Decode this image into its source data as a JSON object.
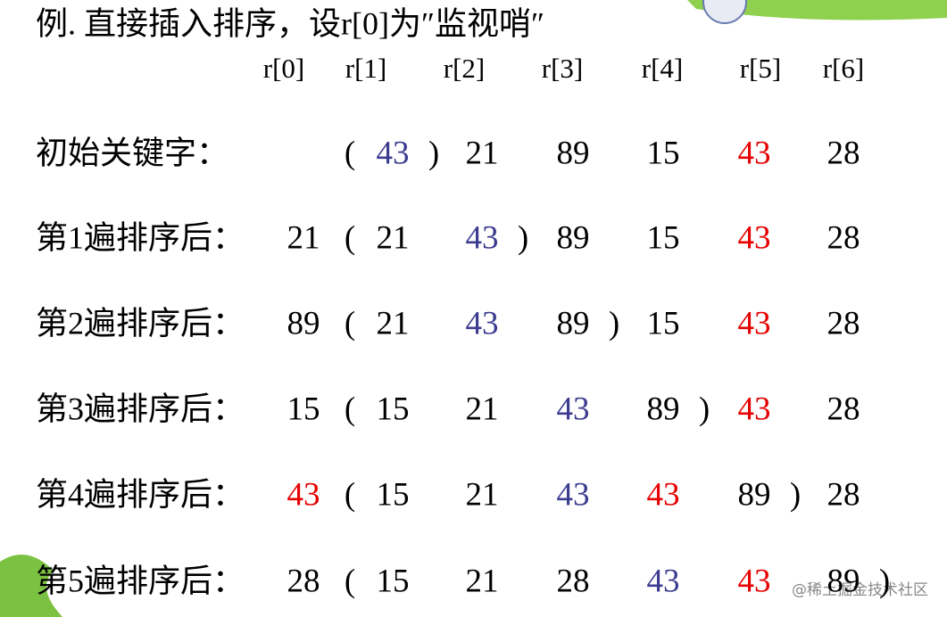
{
  "title": "例. 直接插入排序，设r[0]为″监视哨″",
  "header": [
    "r[0]",
    "r[1]",
    "r[2]",
    "r[3]",
    "r[4]",
    "r[5]",
    "r[6]"
  ],
  "rows": [
    {
      "label": "初始关键字：",
      "tokens": [
        null,
        "(",
        "43",
        ")",
        "21",
        "89",
        "15",
        "43",
        "28"
      ],
      "colors": [
        null,
        null,
        "#3b3b8f",
        null,
        null,
        null,
        null,
        "#e60000",
        null
      ]
    },
    {
      "label": "第1遍排序后：",
      "tokens": [
        "21",
        "(",
        "21",
        "43",
        ")",
        "89",
        "15",
        "43",
        "28"
      ],
      "colors": [
        null,
        null,
        null,
        "#3b3b8f",
        null,
        null,
        null,
        "#e60000",
        null
      ]
    },
    {
      "label": "第2遍排序后：",
      "tokens": [
        "89",
        "(",
        "21",
        "43",
        "89",
        ")",
        "15",
        "43",
        "28"
      ],
      "colors": [
        null,
        null,
        null,
        "#3b3b8f",
        null,
        null,
        null,
        "#e60000",
        null
      ]
    },
    {
      "label": "第3遍排序后：",
      "tokens": [
        "15",
        "(",
        "15",
        "21",
        "43",
        "89",
        ")",
        "43",
        "28"
      ],
      "colors": [
        null,
        null,
        null,
        null,
        "#3b3b8f",
        null,
        null,
        "#e60000",
        null
      ]
    },
    {
      "label": "第4遍排序后：",
      "tokens": [
        "43",
        "(",
        "15",
        "21",
        "43",
        "43",
        "89",
        ")",
        "28"
      ],
      "colors": [
        "#e60000",
        null,
        null,
        null,
        "#3b3b8f",
        "#e60000",
        null,
        null,
        null
      ]
    },
    {
      "label": "第5遍排序后：",
      "tokens": [
        "28",
        "(",
        "15",
        "21",
        "28",
        "43",
        "43",
        "89",
        ")"
      ],
      "colors": [
        null,
        null,
        null,
        null,
        null,
        "#3b3b8f",
        "#e60000",
        null,
        null
      ]
    }
  ],
  "watermark": "@稀土掘金技术社区"
}
